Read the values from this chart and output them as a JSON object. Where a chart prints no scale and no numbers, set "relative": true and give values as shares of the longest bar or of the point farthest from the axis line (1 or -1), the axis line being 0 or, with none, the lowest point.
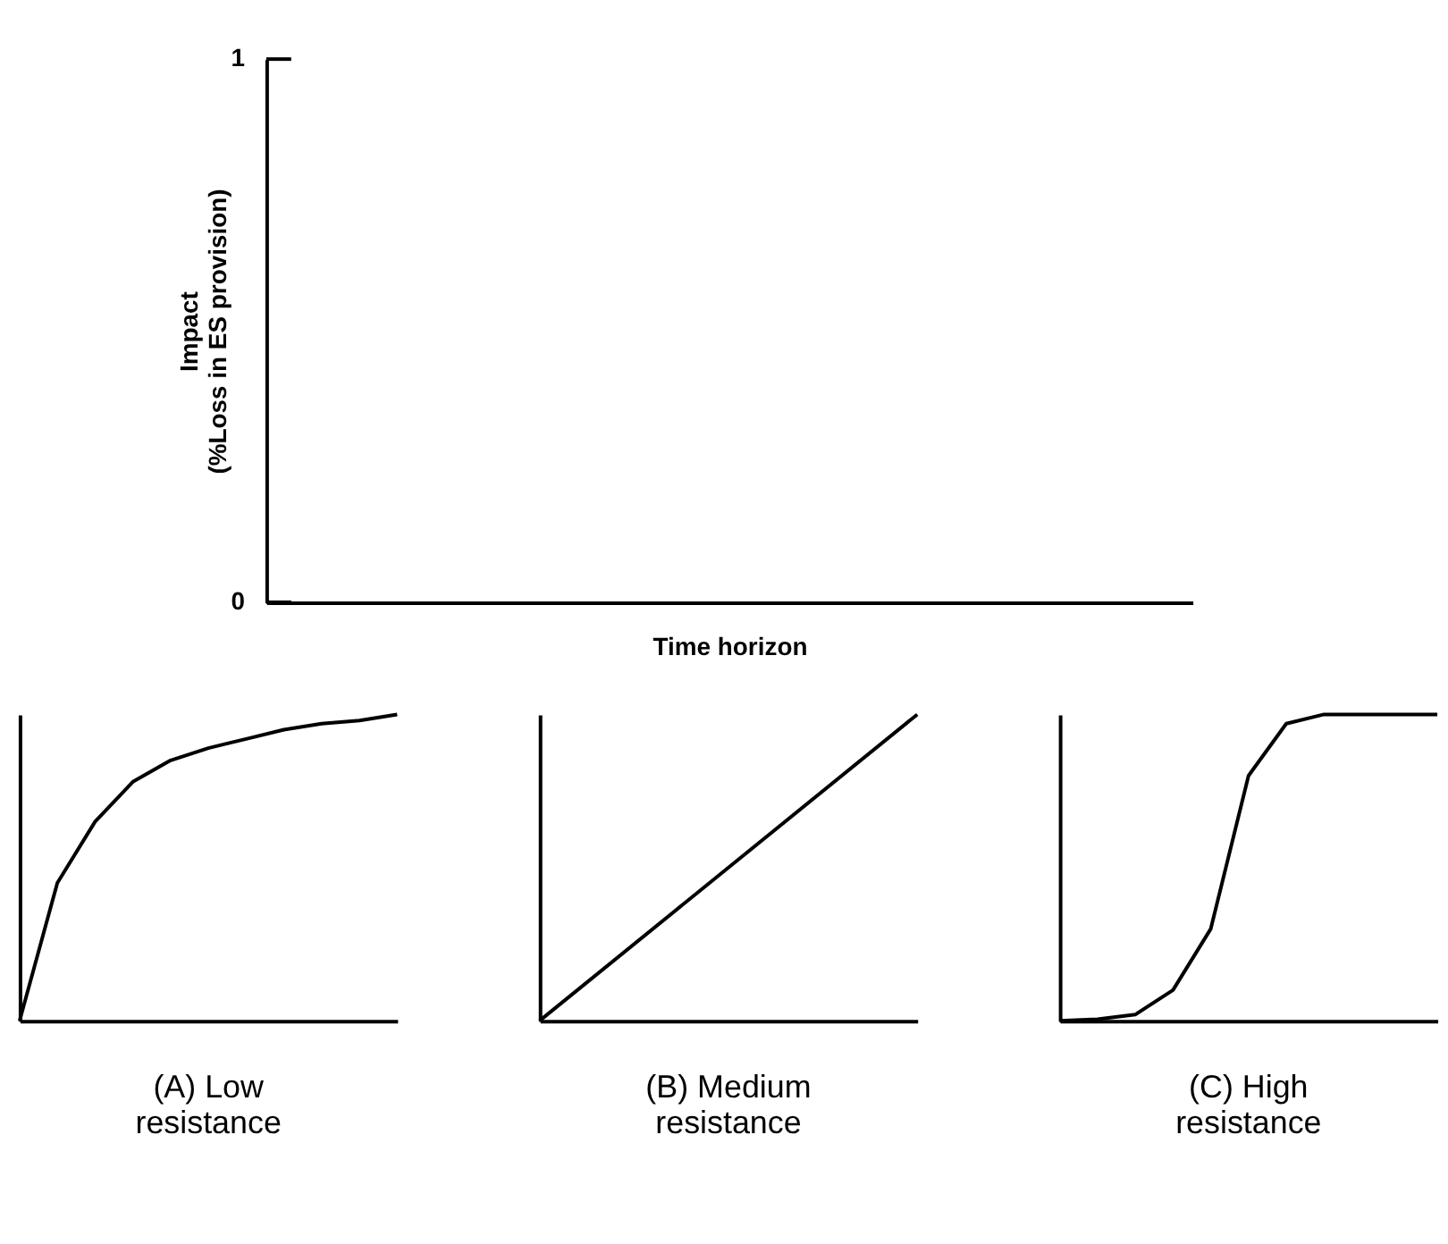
{
  "chart_data": [
    {
      "type": "other",
      "xlabel": "Time horizon",
      "ylabel": "Impact\n(%Loss in ES provision)",
      "annotations": [
        "0",
        "1"
      ]
    },
    {
      "type": "line",
      "title": "(A) Low\nresistance",
      "relative": true,
      "categories": [
        null,
        null,
        null,
        null,
        null,
        null,
        null,
        null,
        null,
        null,
        null
      ],
      "series": [
        {
          "color": "#000000",
          "values": [
            0,
            0.45,
            0.65,
            0.78,
            0.85,
            0.89,
            0.92,
            0.95,
            0.97,
            0.98,
            1
          ]
        }
      ]
    },
    {
      "type": "line",
      "title": "(B) Medium\nresistance",
      "relative": true,
      "categories": [
        null,
        null
      ],
      "series": [
        {
          "color": "#000000",
          "values": [
            0,
            1
          ]
        }
      ]
    },
    {
      "type": "line",
      "title": "(C) High\nresistance",
      "relative": true,
      "categories": [
        null,
        null,
        null,
        null,
        null,
        null,
        null,
        null,
        null,
        null,
        null
      ],
      "series": [
        {
          "color": "#000000",
          "values": [
            0,
            0.005,
            0.02,
            0.1,
            0.3,
            0.8,
            0.97,
            1,
            1,
            1,
            1
          ]
        }
      ]
    }
  ]
}
